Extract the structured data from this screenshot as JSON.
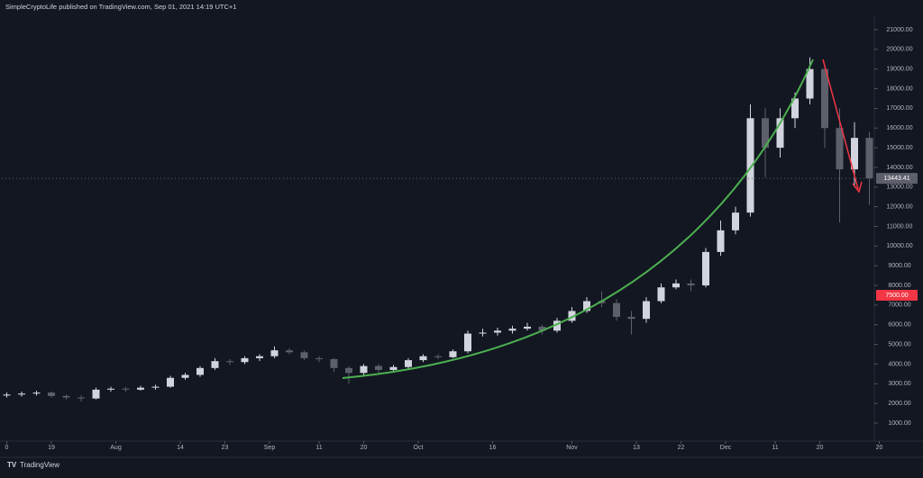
{
  "header": {
    "attribution": "SimpleCryptoLife published on TradingView.com, Sep 01, 2021 14:19 UTC+1"
  },
  "footer": {
    "brand": "TradingView"
  },
  "chart_data": {
    "type": "candlestick",
    "x": [
      0,
      3,
      6,
      9,
      12,
      15,
      18,
      21,
      24,
      27,
      30,
      33,
      36,
      39,
      42,
      45,
      48,
      51,
      54,
      57,
      60,
      63,
      66,
      69,
      72,
      75,
      78,
      81,
      84,
      87,
      90,
      93,
      96,
      99,
      102,
      105,
      108,
      111,
      114,
      117,
      120,
      123,
      126,
      129,
      132,
      135,
      138,
      141,
      144,
      147,
      150,
      153,
      156,
      159,
      162,
      165,
      168,
      171,
      174
    ],
    "open": [
      2400,
      2450,
      2500,
      2550,
      2380,
      2300,
      2250,
      2700,
      2750,
      2700,
      2800,
      2850,
      3300,
      3450,
      3800,
      4150,
      4100,
      4300,
      4400,
      4700,
      4600,
      4300,
      4250,
      3800,
      3550,
      3900,
      3700,
      3850,
      4200,
      4400,
      4350,
      4650,
      5550,
      5600,
      5700,
      5800,
      5900,
      5700,
      6200,
      6700,
      7200,
      7100,
      6400,
      6300,
      7200,
      7900,
      8100,
      8000,
      9700,
      10800,
      11700,
      16500,
      15000,
      16500,
      17500,
      19000,
      16000,
      13900,
      15500
    ],
    "high": [
      2550,
      2600,
      2650,
      2600,
      2450,
      2400,
      2800,
      2850,
      2850,
      2900,
      2950,
      3400,
      3550,
      3900,
      4300,
      4250,
      4400,
      4500,
      4900,
      4800,
      4700,
      4400,
      4300,
      3900,
      4000,
      4000,
      3950,
      4300,
      4500,
      4500,
      4750,
      5700,
      5800,
      5850,
      5950,
      6100,
      6000,
      6350,
      6900,
      7400,
      7700,
      7300,
      6700,
      7400,
      8100,
      8300,
      8300,
      9900,
      11300,
      12000,
      17200,
      17000,
      17000,
      17800,
      19600,
      19100,
      17000,
      16300,
      15800
    ],
    "low": [
      2300,
      2350,
      2400,
      2300,
      2200,
      2100,
      2200,
      2600,
      2600,
      2650,
      2700,
      2800,
      3200,
      3350,
      3700,
      3950,
      4000,
      4150,
      4300,
      4500,
      4200,
      4100,
      3600,
      3000,
      3450,
      3550,
      3600,
      3750,
      4100,
      4250,
      4300,
      4550,
      5400,
      5450,
      5550,
      5700,
      5500,
      5600,
      6100,
      6600,
      6900,
      6200,
      5500,
      6100,
      7100,
      7800,
      7700,
      7900,
      9500,
      10600,
      11500,
      13500,
      14500,
      16000,
      17200,
      15000,
      11200,
      13000,
      12100
    ],
    "close": [
      2450,
      2500,
      2550,
      2380,
      2300,
      2250,
      2700,
      2750,
      2700,
      2800,
      2850,
      3300,
      3450,
      3800,
      4150,
      4100,
      4300,
      4400,
      4700,
      4600,
      4300,
      4250,
      3800,
      3550,
      3900,
      3700,
      3850,
      4200,
      4400,
      4350,
      4650,
      5550,
      5600,
      5700,
      5800,
      5900,
      5700,
      6200,
      6700,
      7200,
      7100,
      6400,
      6300,
      7200,
      7900,
      8100,
      8000,
      9700,
      10800,
      11700,
      16500,
      15000,
      16500,
      17500,
      19000,
      16000,
      13900,
      15500,
      13443.41
    ],
    "up_color": "#d1d4dc",
    "down_color": "#5d606b",
    "xlim": [
      -1,
      175
    ],
    "xticks": [
      {
        "value": 0,
        "label": "0"
      },
      {
        "value": 9,
        "label": "19"
      },
      {
        "value": 22,
        "label": "Aug"
      },
      {
        "value": 35,
        "label": "14"
      },
      {
        "value": 44,
        "label": "23"
      },
      {
        "value": 53,
        "label": "Sep"
      },
      {
        "value": 63,
        "label": "11"
      },
      {
        "value": 72,
        "label": "20"
      },
      {
        "value": 83,
        "label": "Oct"
      },
      {
        "value": 98,
        "label": "16"
      },
      {
        "value": 114,
        "label": "Nov"
      },
      {
        "value": 127,
        "label": "13"
      },
      {
        "value": 136,
        "label": "22"
      },
      {
        "value": 145,
        "label": "Dec"
      },
      {
        "value": 155,
        "label": "11"
      },
      {
        "value": 164,
        "label": "20"
      },
      {
        "value": 176,
        "label": "20"
      }
    ],
    "ylim": [
      400,
      21700
    ],
    "yticks": [
      {
        "value": 1000,
        "label": "1000.00"
      },
      {
        "value": 2000,
        "label": "2000.00"
      },
      {
        "value": 3000,
        "label": "3000.00"
      },
      {
        "value": 4000,
        "label": "4000.00"
      },
      {
        "value": 5000,
        "label": "5000.00"
      },
      {
        "value": 6000,
        "label": "6000.00"
      },
      {
        "value": 7000,
        "label": "7000.00"
      },
      {
        "value": 8000,
        "label": "8000.00"
      },
      {
        "value": 9000,
        "label": "9000.00"
      },
      {
        "value": 10000,
        "label": "10000.00"
      },
      {
        "value": 11000,
        "label": "11000.00"
      },
      {
        "value": 12000,
        "label": "12000.00"
      },
      {
        "value": 13000,
        "label": "13000.00"
      },
      {
        "value": 14000,
        "label": "14000.00"
      },
      {
        "value": 15000,
        "label": "15000.00"
      },
      {
        "value": 16000,
        "label": "16000.00"
      },
      {
        "value": 17000,
        "label": "17000.00"
      },
      {
        "value": 18000,
        "label": "18000.00"
      },
      {
        "value": 19000,
        "label": "19000.00"
      },
      {
        "value": 20000,
        "label": "20000.00"
      },
      {
        "value": 21000,
        "label": "21000.00"
      }
    ],
    "last_price": 13443.41,
    "alert_price": {
      "value": 7500,
      "label": "7500.00"
    }
  }
}
